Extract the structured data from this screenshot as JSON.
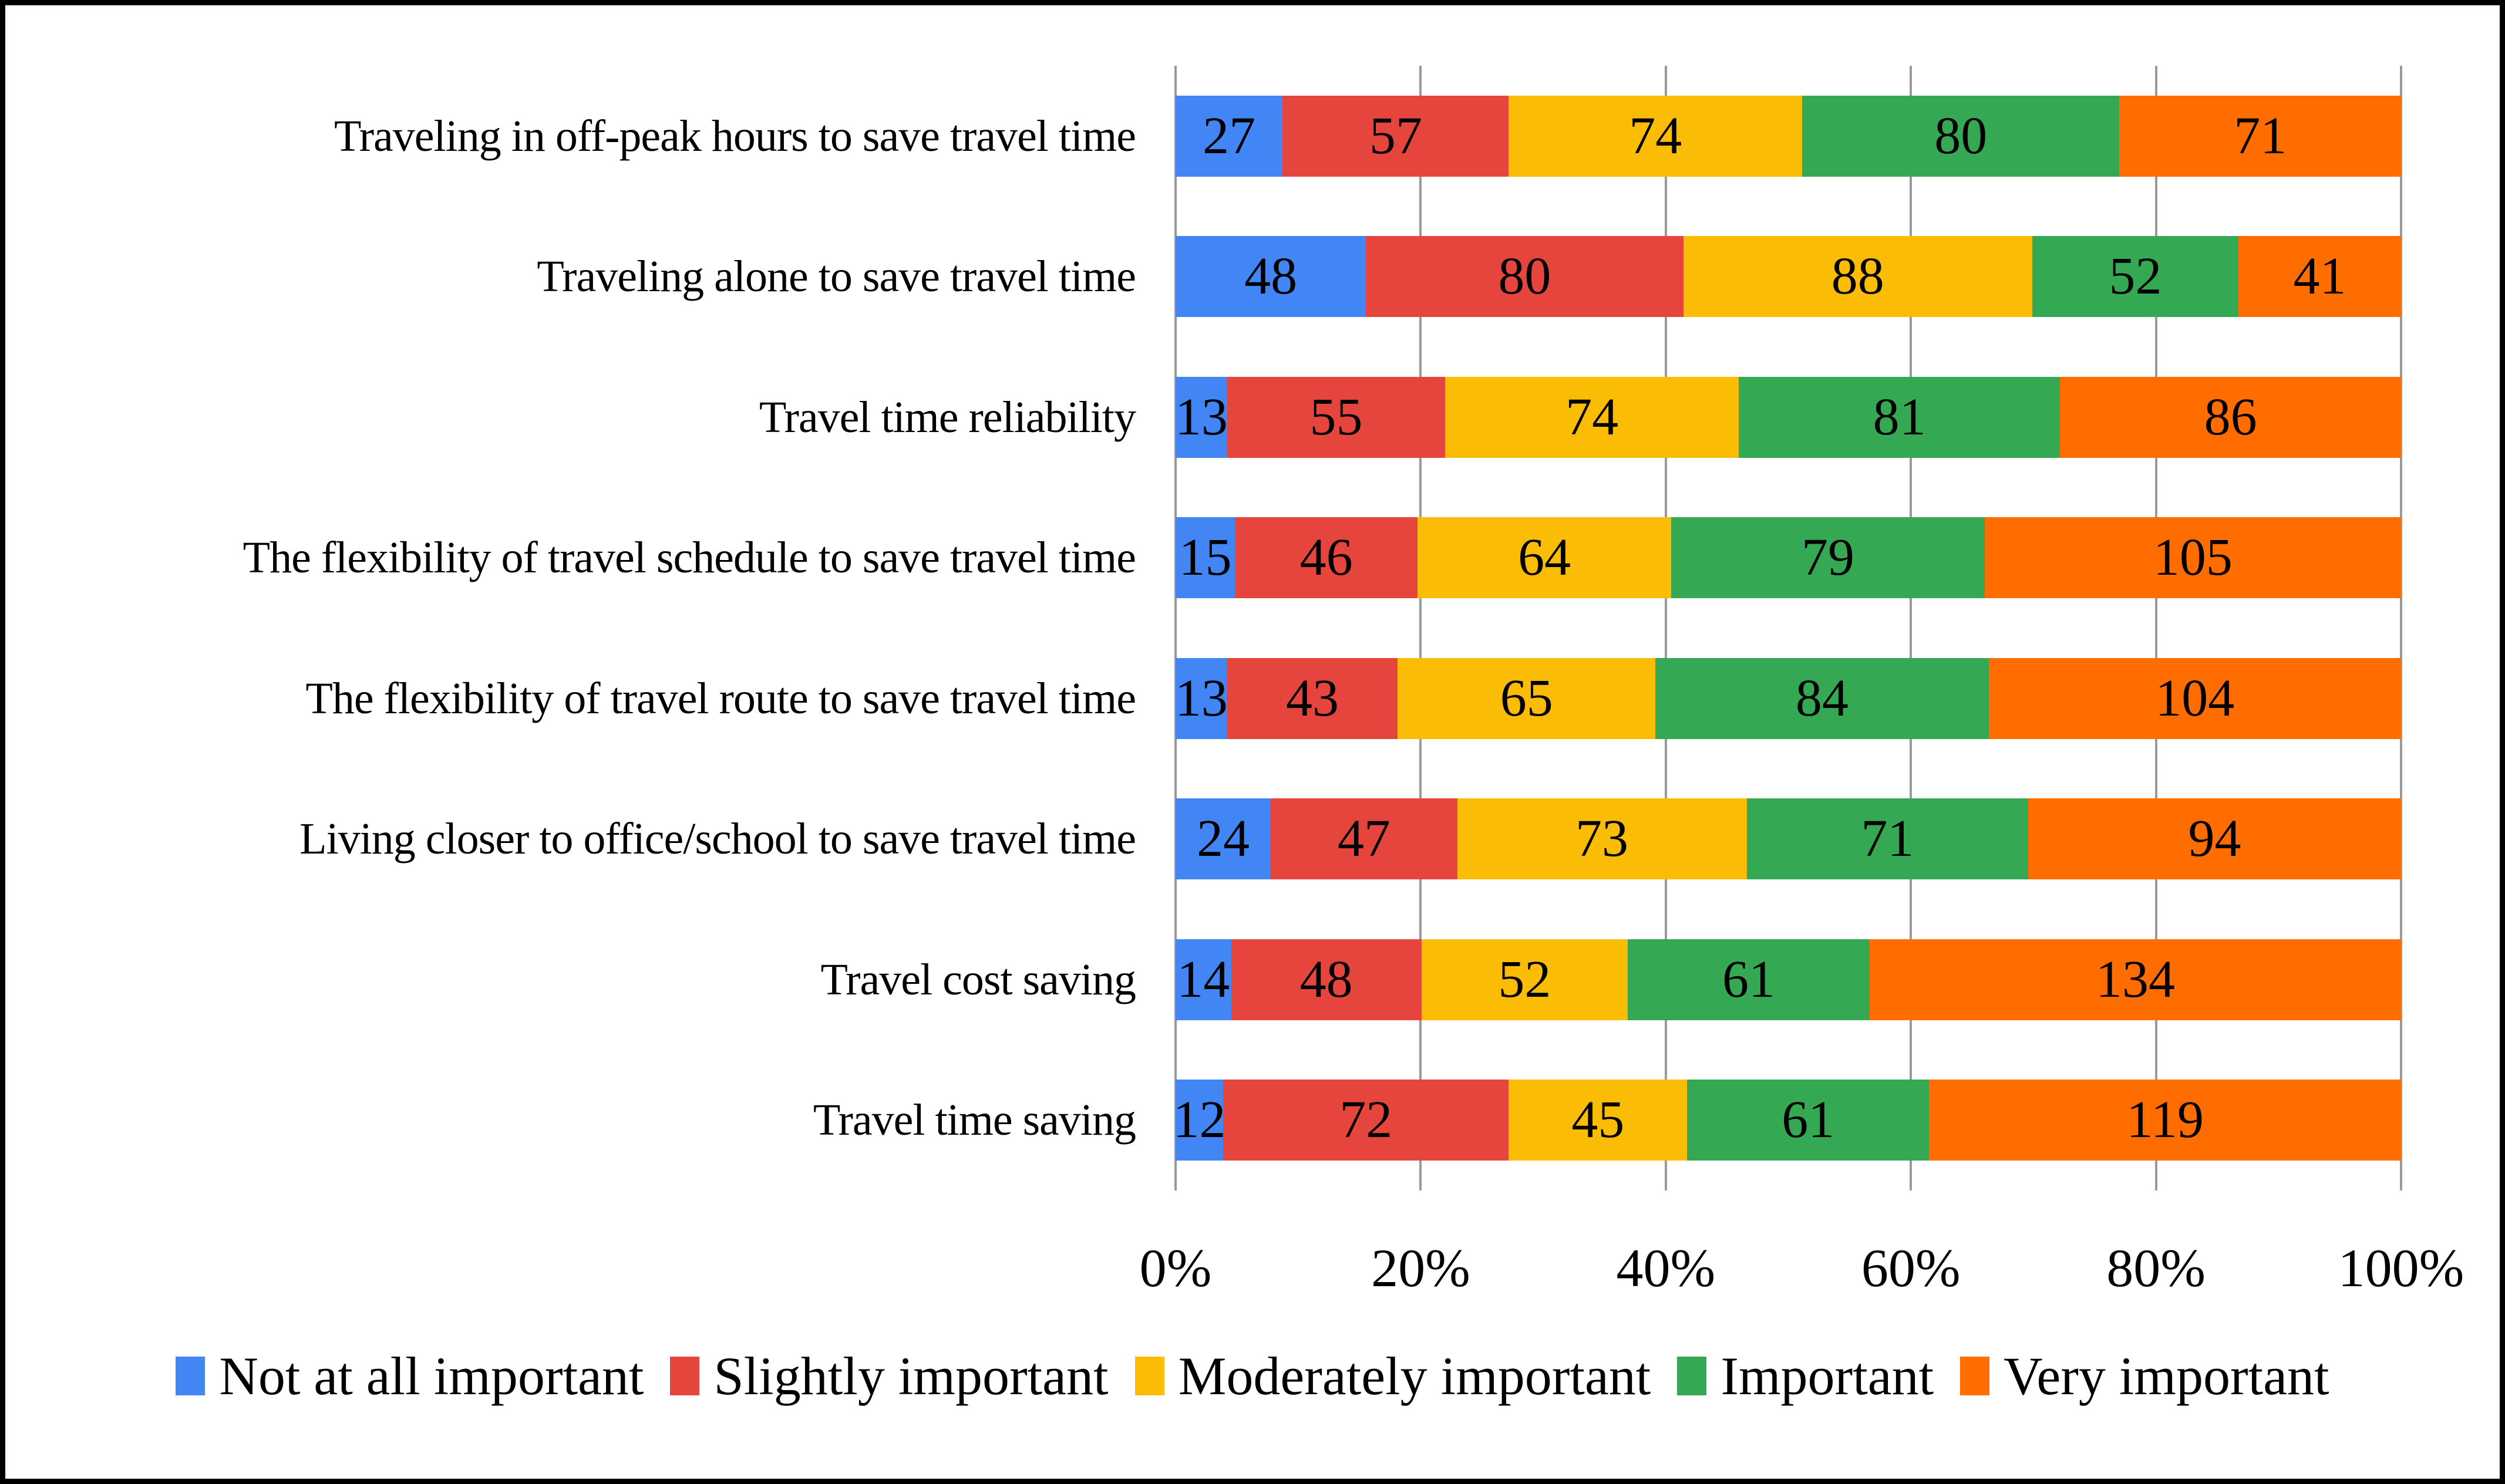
{
  "figure": {
    "background": "#FFFFFF",
    "border_color": "#000000",
    "text_color": "#000000",
    "gridline_color": "#9A9A9A"
  },
  "chart_data": {
    "type": "bar",
    "stacked": true,
    "percent_stacked": true,
    "orientation": "horizontal",
    "title": "",
    "xlabel": "",
    "ylabel": "",
    "xlim": [
      0,
      100
    ],
    "grid": true,
    "legend_position": "bottom",
    "categories": [
      "Traveling in off-peak hours to save travel time",
      "Traveling alone to save travel time",
      "Travel time reliability",
      "The flexibility of travel schedule to save travel time",
      "The flexibility of travel route to save travel time",
      "Living closer to office/school to save travel time",
      "Travel cost saving",
      "Travel time saving"
    ],
    "series": [
      {
        "name": "Not at all important",
        "color": "#4285F4",
        "values": [
          27,
          48,
          13,
          15,
          13,
          24,
          14,
          12
        ]
      },
      {
        "name": "Slightly important",
        "color": "#E5453C",
        "values": [
          57,
          80,
          55,
          46,
          43,
          47,
          48,
          72
        ]
      },
      {
        "name": "Moderately important",
        "color": "#FBBC05",
        "values": [
          74,
          88,
          74,
          64,
          65,
          73,
          52,
          45
        ]
      },
      {
        "name": "Important",
        "color": "#34A853",
        "values": [
          80,
          52,
          81,
          79,
          84,
          71,
          61,
          61
        ]
      },
      {
        "name": "Very important",
        "color": "#FF6D00",
        "values": [
          71,
          41,
          86,
          105,
          104,
          94,
          134,
          119
        ]
      }
    ],
    "x_ticks": [
      "0%",
      "20%",
      "40%",
      "60%",
      "80%",
      "100%"
    ]
  }
}
